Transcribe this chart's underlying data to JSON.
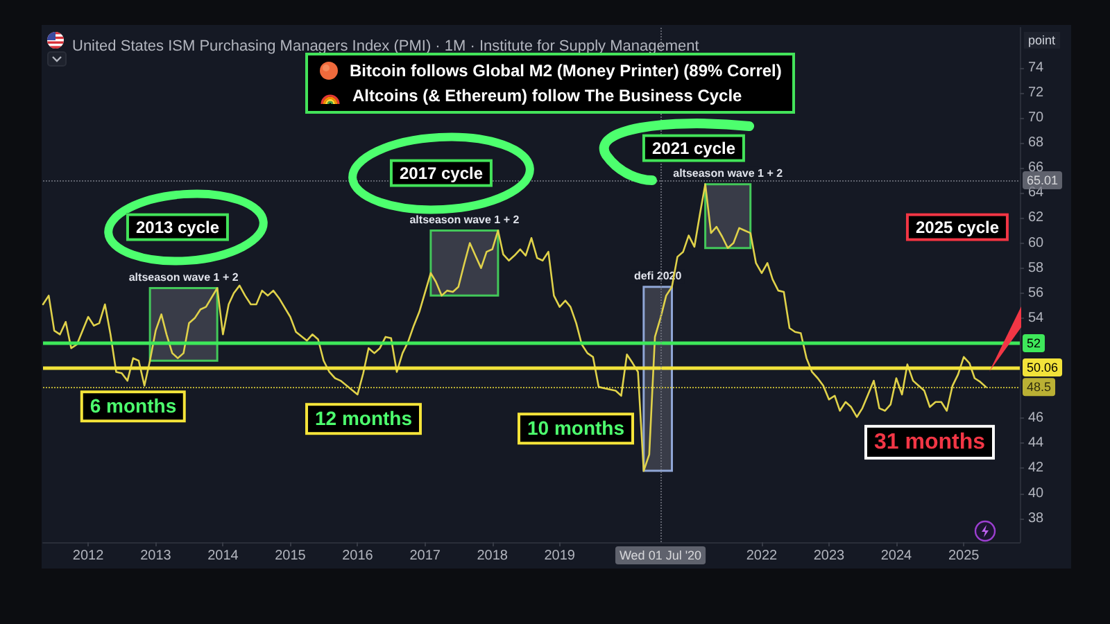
{
  "chart_data": {
    "type": "line",
    "title": "United States ISM Purchasing Managers Index (PMI) · 1M · Institute for Supply Management",
    "ylabel": "point",
    "x": [
      "2011-05",
      "2011-06",
      "2011-07",
      "2011-08",
      "2011-09",
      "2011-10",
      "2011-11",
      "2012-01",
      "2012-02",
      "2012-03",
      "2012-04",
      "2012-05",
      "2012-06",
      "2012-07",
      "2012-08",
      "2012-09",
      "2012-10",
      "2012-11",
      "2012-12",
      "2013-01",
      "2013-02",
      "2013-03",
      "2013-04",
      "2013-05",
      "2013-06",
      "2013-07",
      "2013-08",
      "2013-09",
      "2013-10",
      "2013-12",
      "2014-01",
      "2014-02",
      "2014-03",
      "2014-04",
      "2014-05",
      "2014-06",
      "2014-07",
      "2014-08",
      "2014-09",
      "2014-10",
      "2014-11",
      "2015-01",
      "2015-02",
      "2015-04",
      "2015-05",
      "2015-06",
      "2015-07",
      "2015-08",
      "2015-09",
      "2015-10",
      "2016-01",
      "2016-02",
      "2016-03",
      "2016-04",
      "2016-05",
      "2016-06",
      "2016-07",
      "2016-08",
      "2016-09",
      "2016-10",
      "2016-11",
      "2016-12",
      "2017-02",
      "2017-03",
      "2017-04",
      "2017-05",
      "2017-06",
      "2017-07",
      "2017-08",
      "2017-09",
      "2017-10",
      "2017-11",
      "2017-12",
      "2018-01",
      "2018-02",
      "2018-03",
      "2018-04",
      "2018-05",
      "2018-06",
      "2018-07",
      "2018-08",
      "2018-09",
      "2018-10",
      "2018-11",
      "2018-12",
      "2019-01",
      "2019-02",
      "2019-03",
      "2019-04",
      "2019-05",
      "2019-06",
      "2019-07",
      "2019-08",
      "2019-09",
      "2019-11",
      "2019-12",
      "2020-01",
      "2020-02",
      "2020-03",
      "2020-04",
      "2020-05",
      "2020-06",
      "2020-07",
      "2020-08",
      "2020-09",
      "2020-10",
      "2020-11",
      "2020-12",
      "2021-01",
      "2021-02",
      "2021-03",
      "2021-04",
      "2021-05",
      "2021-06",
      "2021-07",
      "2021-08",
      "2021-09",
      "2021-10",
      "2021-11",
      "2021-12",
      "2022-01",
      "2022-02",
      "2022-03",
      "2022-04",
      "2022-05",
      "2022-06",
      "2022-07",
      "2022-08",
      "2022-09",
      "2022-10",
      "2022-11",
      "2022-12",
      "2023-01",
      "2023-02",
      "2023-03",
      "2023-04",
      "2023-05",
      "2023-06",
      "2023-07",
      "2023-08",
      "2023-09",
      "2023-10",
      "2023-11",
      "2023-12",
      "2024-01",
      "2024-02",
      "2024-03",
      "2024-04",
      "2024-05",
      "2024-06",
      "2024-07",
      "2024-08",
      "2024-09",
      "2024-10",
      "2024-11",
      "2024-12",
      "2025-01",
      "2025-02",
      "2025-03",
      "2025-04",
      "2025-05"
    ],
    "series": [
      {
        "color": "#e0d24a",
        "values": [
          55.1,
          55.8,
          53.0,
          52.7,
          53.7,
          51.6,
          51.9,
          54.1,
          53.4,
          53.6,
          55.1,
          52.7,
          49.7,
          49.6,
          49.0,
          50.8,
          50.6,
          48.6,
          50.6,
          53.0,
          54.3,
          52.7,
          51.2,
          50.8,
          51.2,
          53.6,
          54.0,
          54.7,
          54.9,
          56.4,
          52.7,
          55.1,
          56.0,
          56.6,
          55.8,
          55.1,
          55.1,
          56.2,
          55.8,
          56.2,
          55.6,
          54.1,
          52.9,
          52.2,
          52.7,
          52.3,
          50.6,
          49.7,
          49.2,
          49.0,
          47.9,
          49.6,
          51.6,
          51.2,
          51.6,
          52.5,
          52.4,
          49.7,
          51.2,
          52.1,
          53.4,
          54.5,
          57.6,
          56.9,
          55.8,
          56.2,
          56.1,
          56.5,
          58.3,
          60.0,
          59.0,
          58.0,
          59.3,
          59.5,
          61.0,
          59.1,
          58.6,
          59.0,
          59.5,
          59.0,
          60.4,
          58.8,
          58.6,
          59.3,
          55.8,
          54.9,
          55.4,
          54.9,
          53.6,
          51.9,
          51.2,
          50.9,
          48.5,
          48.4,
          48.2,
          47.8,
          51.1,
          50.4,
          49.7,
          41.8,
          43.1,
          52.5,
          54.0,
          55.8,
          56.5,
          58.9,
          59.3,
          60.6,
          59.7,
          62.4,
          64.7,
          60.8,
          61.3,
          60.5,
          59.6,
          60.0,
          61.2,
          61.0,
          60.8,
          58.4,
          57.6,
          58.4,
          57.1,
          56.2,
          56.1,
          53.2,
          52.9,
          52.8,
          50.8,
          49.7,
          49.2,
          48.6,
          47.5,
          47.8,
          46.6,
          47.3,
          46.9,
          46.1,
          46.8,
          47.9,
          49.0,
          46.8,
          46.6,
          47.1,
          49.2,
          47.9,
          50.3,
          49.0,
          48.6,
          48.2,
          46.9,
          47.3,
          47.3,
          46.6,
          48.6,
          49.5,
          50.9,
          50.4,
          49.2,
          48.9,
          48.5
        ]
      }
    ],
    "xlim": [
      "2011-05",
      "2025-11"
    ],
    "xticks": [
      "2012",
      "2013",
      "2014",
      "2015",
      "2016",
      "2017",
      "2018",
      "2019",
      "2022",
      "2023",
      "2024",
      "2025"
    ],
    "ylim": [
      36.1,
      77.2
    ],
    "yticks": [
      38,
      40,
      42,
      44,
      46,
      54,
      56,
      58,
      60,
      62,
      64,
      66,
      68,
      70,
      72,
      74
    ],
    "marker": "none",
    "ref_lines": [
      {
        "axis": "y",
        "value": 52,
        "label": "52",
        "color": "#3ee85a"
      },
      {
        "axis": "y",
        "value": 50.06,
        "label": "50.06",
        "color": "#f2e33a"
      },
      {
        "axis": "y",
        "value": 48.5,
        "label": "48.5",
        "color": "#f2e33a",
        "line_style": "dotted"
      },
      {
        "axis": "y",
        "value": 65.01,
        "label": "65.01",
        "color": "#787b86",
        "line_style": "dotted"
      },
      {
        "axis": "x",
        "value": "2020-07-01",
        "label": "Wed 01 Jul '20",
        "color": "#787b86",
        "line_style": "dotted"
      }
    ],
    "bands": [
      {
        "axis": "x",
        "from": "2012-12",
        "to": "2013-12",
        "label": "altseason wave 1 + 2",
        "color": "#43c85a"
      },
      {
        "axis": "x",
        "from": "2017-02",
        "to": "2018-02",
        "label": "altseason wave 1 + 2",
        "color": "#43c85a"
      },
      {
        "axis": "x",
        "from": "2020-04",
        "to": "2020-09",
        "label": "defi 2020",
        "color": "#8fa6d6"
      },
      {
        "axis": "x",
        "from": "2021-03",
        "to": "2021-11",
        "label": "altseason wave 1 + 2",
        "color": "#43c85a"
      }
    ],
    "annotations": [
      "Bitcoin follows Global M2 (Money Printer) (89% Correl)",
      "Altcoins (& Ethereum) follow The Business Cycle",
      "2013 cycle",
      "2017 cycle",
      "2021 cycle",
      "2025 cycle",
      "6 months",
      "12 months",
      "10 months",
      "31 months"
    ]
  }
}
